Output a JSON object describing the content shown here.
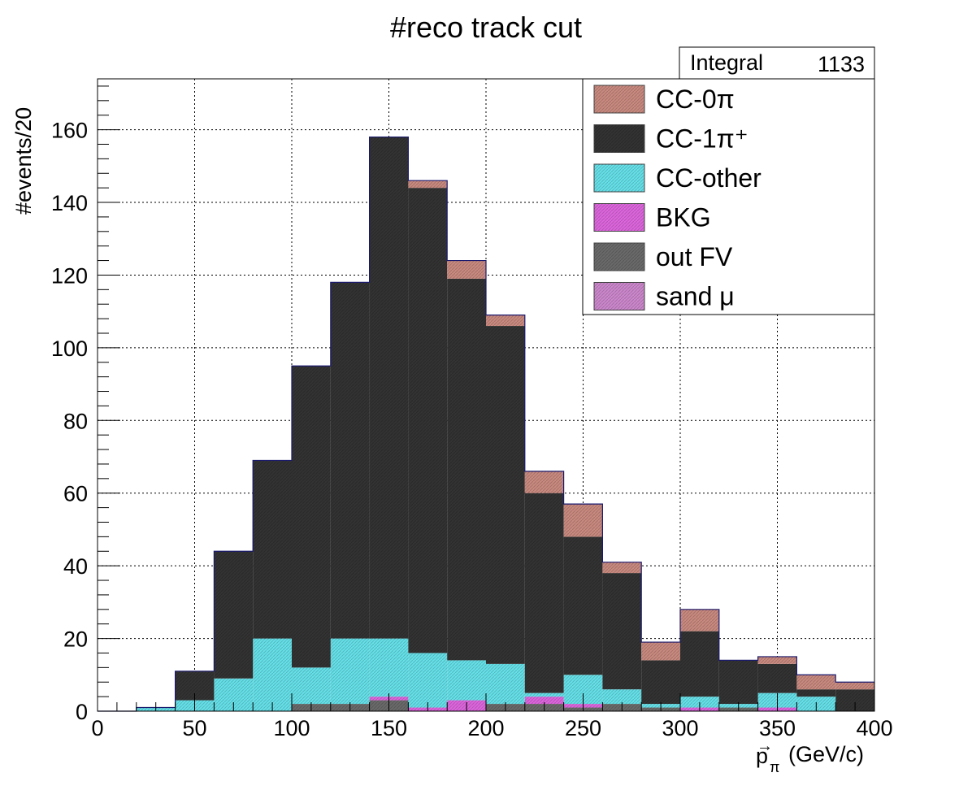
{
  "chart_data": {
    "type": "bar",
    "stacked": true,
    "title": "#reco track cut",
    "ylabel": "#events/20",
    "xlabel": {
      "symbol": "p",
      "subscript": "π",
      "unit": "(GeV/c)"
    },
    "xlim": [
      0,
      400
    ],
    "ylim": [
      0,
      174
    ],
    "x_ticks": [
      "0",
      "50",
      "100",
      "150",
      "200",
      "250",
      "300",
      "350",
      "400"
    ],
    "y_ticks": [
      "0",
      "20",
      "40",
      "60",
      "80",
      "100",
      "120",
      "140",
      "160"
    ],
    "grid": true,
    "bin_width": 20,
    "bin_edges": [
      0,
      20,
      40,
      60,
      80,
      100,
      120,
      140,
      160,
      180,
      200,
      220,
      240,
      260,
      280,
      300,
      320,
      340,
      360,
      380,
      400
    ],
    "stats_box": {
      "label": "Integral",
      "value": "1133"
    },
    "legend_position": "top-right",
    "series": [
      {
        "name": "sand μ",
        "color": "#cc88cc",
        "values": [
          0,
          0,
          0,
          0,
          0,
          0,
          0,
          0,
          0,
          0,
          0,
          0,
          0,
          0,
          0,
          0,
          0,
          0,
          0,
          0
        ]
      },
      {
        "name": "out FV",
        "color": "#6a6a6a",
        "values": [
          0,
          0,
          0,
          0,
          0,
          2,
          2,
          3,
          0,
          0,
          2,
          2,
          1,
          2,
          1,
          0,
          1,
          0,
          0,
          0
        ]
      },
      {
        "name": "BKG",
        "color": "#dd66dd",
        "values": [
          0,
          0,
          0,
          0,
          0,
          0,
          0,
          1,
          1,
          3,
          0,
          2,
          1,
          0,
          0,
          1,
          0,
          1,
          0,
          0
        ]
      },
      {
        "name": "CC-other",
        "color": "#66e0e8",
        "values": [
          0,
          1,
          3,
          9,
          20,
          10,
          18,
          16,
          15,
          11,
          11,
          1,
          8,
          4,
          1,
          3,
          1,
          4,
          4,
          0
        ]
      },
      {
        "name": "CC-1π⁺",
        "color": "#333333",
        "values": [
          0,
          0,
          8,
          35,
          49,
          83,
          98,
          138,
          128,
          105,
          93,
          55,
          38,
          32,
          12,
          18,
          12,
          8,
          2,
          6
        ]
      },
      {
        "name": "CC-0π",
        "color": "#c98a80",
        "values": [
          0,
          0,
          0,
          0,
          0,
          0,
          0,
          0,
          2,
          5,
          3,
          6,
          9,
          3,
          5,
          6,
          0,
          2,
          4,
          2
        ]
      }
    ]
  }
}
